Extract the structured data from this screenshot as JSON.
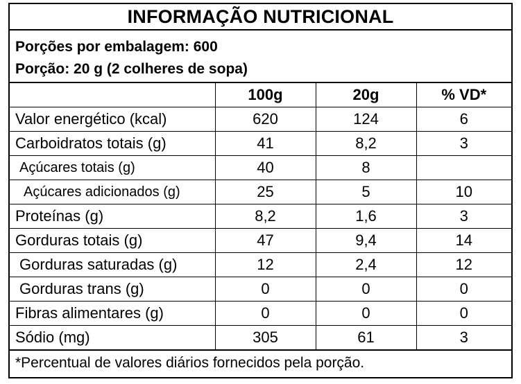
{
  "title": "INFORMAÇÃO NUTRICIONAL",
  "serving": {
    "servings_per_package": "Porções por embalagem: 600",
    "serving_size": "Porção: 20 g (2 colheres de sopa)"
  },
  "columns": [
    "",
    "100g",
    "20g",
    "% VD*"
  ],
  "rows": [
    {
      "name": "Valor energético (kcal)",
      "per100": "620",
      "per20": "124",
      "vd": "6"
    },
    {
      "name": "Carboidratos totais (g)",
      "per100": "41",
      "per20": "8,2",
      "vd": "3"
    },
    {
      "name": "Açúcares totais (g)",
      "per100": "40",
      "per20": "8",
      "vd": ""
    },
    {
      "name": "Açúcares adicionados (g)",
      "per100": "25",
      "per20": "5",
      "vd": "10"
    },
    {
      "name": "Proteínas (g)",
      "per100": "8,2",
      "per20": "1,6",
      "vd": "3"
    },
    {
      "name": "Gorduras totais (g)",
      "per100": "47",
      "per20": "9,4",
      "vd": "14"
    },
    {
      "name": "Gorduras saturadas (g)",
      "per100": "12",
      "per20": "2,4",
      "vd": "12"
    },
    {
      "name": "Gorduras trans (g)",
      "per100": "0",
      "per20": "0",
      "vd": "0"
    },
    {
      "name": "Fibras alimentares (g)",
      "per100": "0",
      "per20": "0",
      "vd": "0"
    },
    {
      "name": "Sódio (mg)",
      "per100": "305",
      "per20": "61",
      "vd": "3"
    }
  ],
  "footnote": "*Percentual de valores diários fornecidos pela porção."
}
